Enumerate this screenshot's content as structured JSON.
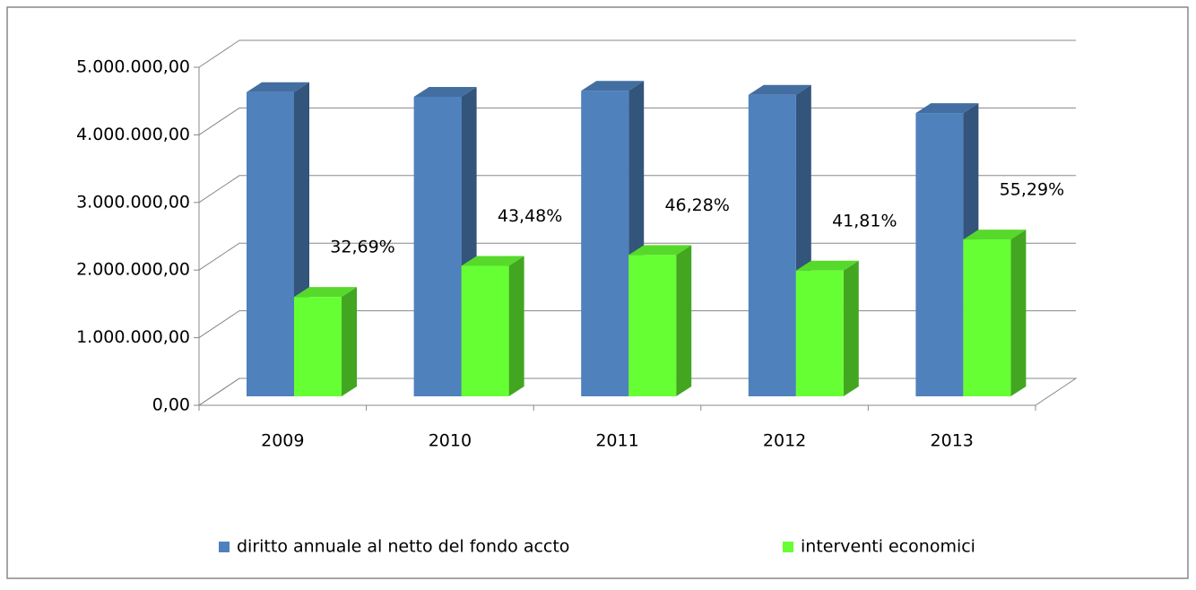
{
  "chart_data": {
    "type": "bar3d",
    "categories": [
      "2009",
      "2010",
      "2011",
      "2012",
      "2013"
    ],
    "series": [
      {
        "name": "diritto annuale al netto del fondo accto",
        "color": "#4f81bd",
        "values": [
          4500000,
          4430000,
          4520000,
          4460000,
          4190000
        ]
      },
      {
        "name": "interventi economici",
        "color": "#66ff33",
        "values": [
          1470000,
          1930000,
          2090000,
          1860000,
          2320000
        ],
        "data_labels": [
          "32,69%",
          "43,48%",
          "46,28%",
          "41,81%",
          "55,29%"
        ]
      }
    ],
    "ylim": [
      0,
      5000000
    ],
    "yticks": [
      {
        "value": 0,
        "label": "0,00"
      },
      {
        "value": 1000000,
        "label": "1.000.000,00"
      },
      {
        "value": 2000000,
        "label": "2.000.000,00"
      },
      {
        "value": 3000000,
        "label": "3.000.000,00"
      },
      {
        "value": 4000000,
        "label": "4.000.000,00"
      },
      {
        "value": 5000000,
        "label": "5.000.000,00"
      }
    ],
    "grid": true,
    "legend": "bottom"
  }
}
